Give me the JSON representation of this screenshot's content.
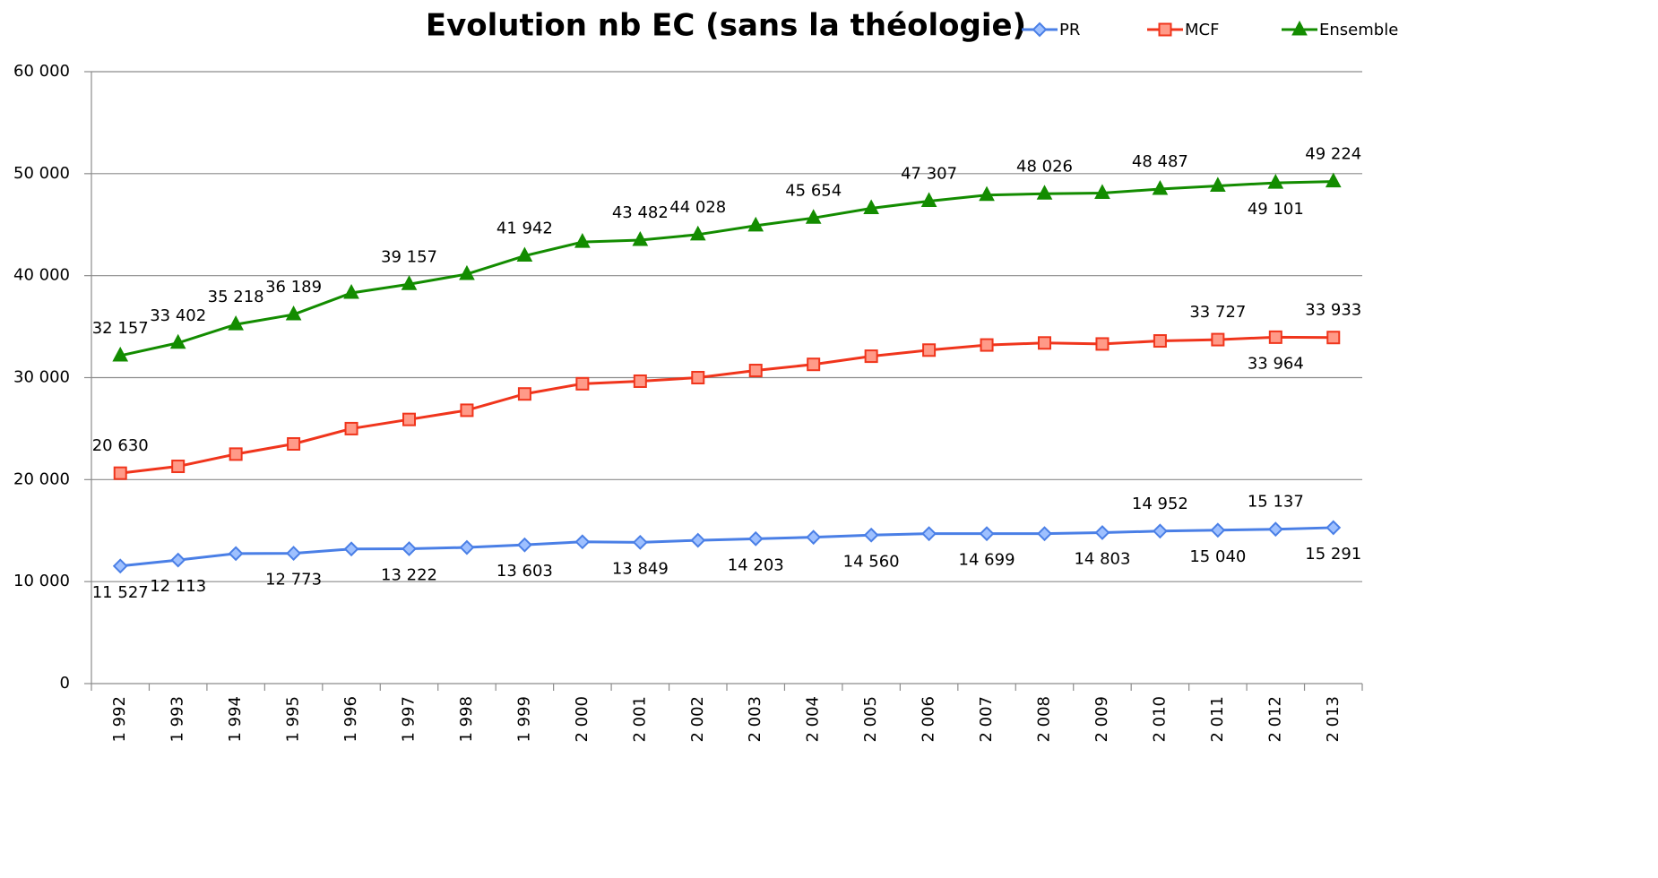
{
  "chart_data": {
    "type": "line",
    "title": "Evolution nb EC (sans la théologie)",
    "categories": [
      "1 992",
      "1 993",
      "1 994",
      "1 995",
      "1 996",
      "1 997",
      "1 998",
      "1 999",
      "2 000",
      "2 001",
      "2 002",
      "2 003",
      "2 004",
      "2 005",
      "2 006",
      "2 007",
      "2 008",
      "2 009",
      "2 010",
      "2 011",
      "2 012",
      "2 013"
    ],
    "ylim": [
      0,
      60000
    ],
    "yticks": [
      {
        "value": 0,
        "label": "0"
      },
      {
        "value": 10000,
        "label": "10 000"
      },
      {
        "value": 20000,
        "label": "20 000"
      },
      {
        "value": 30000,
        "label": "30 000"
      },
      {
        "value": 40000,
        "label": "40 000"
      },
      {
        "value": 50000,
        "label": "50 000"
      },
      {
        "value": 60000,
        "label": "60 000"
      }
    ],
    "grid": true,
    "legend": "top-right",
    "series": [
      {
        "name": "PR",
        "color": "#4a7fe6",
        "marker": "diamond",
        "values": [
          11527,
          12113,
          12750,
          12773,
          13200,
          13222,
          13350,
          13603,
          13900,
          13849,
          14050,
          14203,
          14350,
          14560,
          14700,
          14699,
          14700,
          14803,
          14952,
          15040,
          15137,
          15291
        ],
        "value_labels": [
          "11 527",
          "12 113",
          null,
          "12 773",
          null,
          "13 222",
          null,
          "13 603",
          null,
          "13 849",
          null,
          "14 203",
          null,
          "14 560",
          null,
          "14 699",
          null,
          "14 803",
          "14 952",
          "15 040",
          "15 137",
          "15 291"
        ]
      },
      {
        "name": "MCF",
        "color": "#f0351c",
        "marker": "square",
        "values": [
          20630,
          21300,
          22500,
          23500,
          25000,
          25900,
          26800,
          28400,
          29400,
          29650,
          30000,
          30700,
          31300,
          32100,
          32700,
          33200,
          33400,
          33300,
          33600,
          33727,
          33964,
          33933
        ],
        "value_labels": [
          "20 630",
          null,
          null,
          null,
          null,
          null,
          null,
          null,
          null,
          null,
          null,
          null,
          null,
          null,
          null,
          null,
          null,
          null,
          null,
          "33 727",
          "33 964",
          "33 933"
        ]
      },
      {
        "name": "Ensemble",
        "color": "#138c00",
        "marker": "triangle",
        "values": [
          32157,
          33402,
          35218,
          36189,
          38300,
          39157,
          40150,
          41942,
          43300,
          43482,
          44028,
          44900,
          45654,
          46600,
          47307,
          47900,
          48026,
          48100,
          48487,
          48800,
          49101,
          49224
        ],
        "value_labels": [
          "32 157",
          "33 402",
          "35 218",
          "36 189",
          null,
          "39 157",
          null,
          "41 942",
          null,
          "43 482",
          "44 028",
          null,
          "45 654",
          null,
          "47 307",
          null,
          "48 026",
          null,
          "48 487",
          null,
          "49 101",
          "49 224"
        ]
      }
    ]
  }
}
